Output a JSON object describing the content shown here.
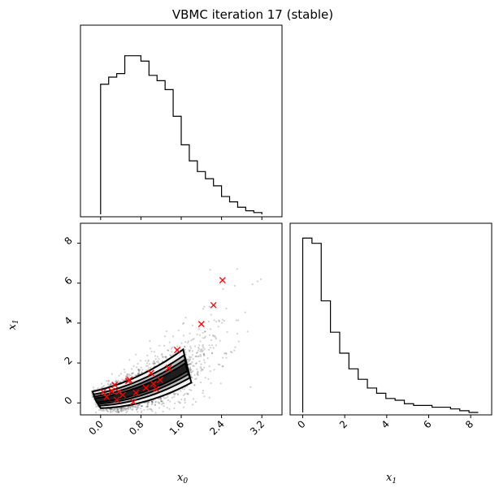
{
  "title": "VBMC iteration 17 (stable)",
  "chart_data": [
    {
      "type": "histogram",
      "panel": "top-left",
      "variable": "x_0",
      "xlim": [
        -0.4,
        3.6
      ],
      "bins": [
        {
          "x0": 0.0,
          "x1": 0.16,
          "count": 0.73
        },
        {
          "x0": 0.16,
          "x1": 0.32,
          "count": 0.77
        },
        {
          "x0": 0.32,
          "x1": 0.48,
          "count": 0.79
        },
        {
          "x0": 0.48,
          "x1": 0.64,
          "count": 0.89
        },
        {
          "x0": 0.64,
          "x1": 0.8,
          "count": 0.89
        },
        {
          "x0": 0.8,
          "x1": 0.96,
          "count": 0.86
        },
        {
          "x0": 0.96,
          "x1": 1.12,
          "count": 0.78
        },
        {
          "x0": 1.12,
          "x1": 1.28,
          "count": 0.75
        },
        {
          "x0": 1.28,
          "x1": 1.44,
          "count": 0.7
        },
        {
          "x0": 1.44,
          "x1": 1.6,
          "count": 0.55
        },
        {
          "x0": 1.6,
          "x1": 1.76,
          "count": 0.39
        },
        {
          "x0": 1.76,
          "x1": 1.92,
          "count": 0.3
        },
        {
          "x0": 1.92,
          "x1": 2.08,
          "count": 0.24
        },
        {
          "x0": 2.08,
          "x1": 2.24,
          "count": 0.2
        },
        {
          "x0": 2.24,
          "x1": 2.4,
          "count": 0.16
        },
        {
          "x0": 2.4,
          "x1": 2.56,
          "count": 0.1
        },
        {
          "x0": 2.56,
          "x1": 2.72,
          "count": 0.07
        },
        {
          "x0": 2.72,
          "x1": 2.88,
          "count": 0.04
        },
        {
          "x0": 2.88,
          "x1": 3.04,
          "count": 0.02
        },
        {
          "x0": 3.04,
          "x1": 3.2,
          "count": 0.01
        }
      ]
    },
    {
      "type": "scatter",
      "panel": "bottom-left",
      "xlabel": "x_0",
      "ylabel": "x_1",
      "xlim": [
        -0.4,
        3.6
      ],
      "ylim": [
        -0.6,
        9.0
      ],
      "xticks": [
        "0.0",
        "0.8",
        "1.6",
        "2.4",
        "3.2"
      ],
      "xtick_values": [
        0.0,
        0.8,
        1.6,
        2.4,
        3.2
      ],
      "yticks": [
        "0",
        "2",
        "4",
        "6",
        "8"
      ],
      "ytick_values": [
        0,
        2,
        4,
        6,
        8
      ],
      "marker_color": "#ff0000",
      "points_red_x": [
        [
          0.05,
          0.55
        ],
        [
          0.12,
          0.3
        ],
        [
          0.22,
          0.6
        ],
        [
          0.28,
          0.9
        ],
        [
          0.32,
          0.15
        ],
        [
          0.36,
          0.55
        ],
        [
          0.44,
          0.4
        ],
        [
          0.55,
          1.1
        ],
        [
          0.57,
          1.15
        ],
        [
          0.65,
          0.05
        ],
        [
          0.7,
          0.5
        ],
        [
          0.9,
          0.75
        ],
        [
          1.0,
          1.5
        ],
        [
          1.05,
          0.95
        ],
        [
          1.1,
          0.7
        ],
        [
          1.18,
          1.15
        ],
        [
          1.35,
          1.75
        ],
        [
          1.52,
          2.65
        ],
        [
          2.0,
          3.95
        ],
        [
          2.24,
          4.9
        ],
        [
          2.42,
          6.15
        ]
      ],
      "density_contours": 4
    },
    {
      "type": "histogram",
      "panel": "bottom-right",
      "variable": "x_1",
      "xlabel": "x_1",
      "xlim": [
        -0.6,
        9.0
      ],
      "xticks": [
        "0",
        "2",
        "4",
        "6",
        "8"
      ],
      "xtick_values": [
        0,
        2,
        4,
        6,
        8
      ],
      "bins": [
        {
          "x0": 0.0,
          "x1": 0.44,
          "count": 1.0
        },
        {
          "x0": 0.44,
          "x1": 0.88,
          "count": 0.97
        },
        {
          "x0": 0.88,
          "x1": 1.32,
          "count": 0.64
        },
        {
          "x0": 1.32,
          "x1": 1.76,
          "count": 0.46
        },
        {
          "x0": 1.76,
          "x1": 2.2,
          "count": 0.34
        },
        {
          "x0": 2.2,
          "x1": 2.64,
          "count": 0.25
        },
        {
          "x0": 2.64,
          "x1": 3.08,
          "count": 0.19
        },
        {
          "x0": 3.08,
          "x1": 3.52,
          "count": 0.14
        },
        {
          "x0": 3.52,
          "x1": 3.96,
          "count": 0.11
        },
        {
          "x0": 3.96,
          "x1": 4.4,
          "count": 0.08
        },
        {
          "x0": 4.4,
          "x1": 4.84,
          "count": 0.07
        },
        {
          "x0": 4.84,
          "x1": 5.28,
          "count": 0.05
        },
        {
          "x0": 5.28,
          "x1": 5.72,
          "count": 0.04
        },
        {
          "x0": 5.72,
          "x1": 6.16,
          "count": 0.04
        },
        {
          "x0": 6.16,
          "x1": 6.6,
          "count": 0.03
        },
        {
          "x0": 6.6,
          "x1": 7.04,
          "count": 0.03
        },
        {
          "x0": 7.04,
          "x1": 7.48,
          "count": 0.02
        },
        {
          "x0": 7.48,
          "x1": 7.92,
          "count": 0.01
        },
        {
          "x0": 7.92,
          "x1": 8.36,
          "count": 0.0
        }
      ]
    }
  ],
  "labels": {
    "x0_main": "x",
    "x0_sub": "0",
    "x1_main": "x",
    "x1_sub": "1"
  }
}
